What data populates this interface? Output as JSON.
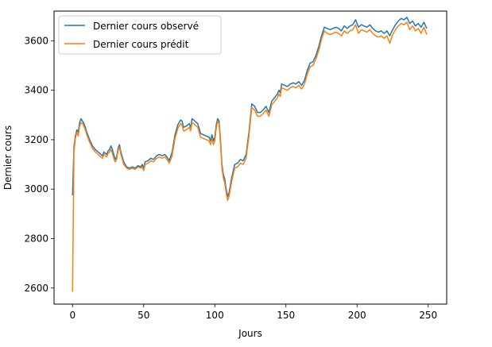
{
  "chart_data": {
    "type": "line",
    "title": "",
    "xlabel": "Jours",
    "ylabel": "Dernier cours",
    "xlim": [
      -13,
      263
    ],
    "ylim": [
      2535,
      3720
    ],
    "xticks": [
      0,
      50,
      100,
      150,
      200,
      250
    ],
    "yticks": [
      2600,
      2800,
      3000,
      3200,
      3400,
      3600
    ],
    "grid": false,
    "legend_position": "top-left",
    "series": [
      {
        "name": "Dernier cours observé",
        "color": "#1f77b4",
        "points": [
          [
            0,
            2975
          ],
          [
            1,
            3170
          ],
          [
            2,
            3215
          ],
          [
            3,
            3240
          ],
          [
            4,
            3230
          ],
          [
            5,
            3270
          ],
          [
            6,
            3285
          ],
          [
            7,
            3275
          ],
          [
            8,
            3265
          ],
          [
            9,
            3250
          ],
          [
            10,
            3230
          ],
          [
            12,
            3200
          ],
          [
            14,
            3175
          ],
          [
            16,
            3160
          ],
          [
            18,
            3150
          ],
          [
            20,
            3140
          ],
          [
            21,
            3135
          ],
          [
            22,
            3150
          ],
          [
            23,
            3145
          ],
          [
            24,
            3140
          ],
          [
            25,
            3155
          ],
          [
            26,
            3160
          ],
          [
            27,
            3175
          ],
          [
            28,
            3160
          ],
          [
            29,
            3140
          ],
          [
            30,
            3120
          ],
          [
            31,
            3130
          ],
          [
            32,
            3165
          ],
          [
            33,
            3180
          ],
          [
            34,
            3150
          ],
          [
            36,
            3110
          ],
          [
            38,
            3090
          ],
          [
            40,
            3085
          ],
          [
            42,
            3090
          ],
          [
            44,
            3085
          ],
          [
            46,
            3095
          ],
          [
            48,
            3090
          ],
          [
            49,
            3100
          ],
          [
            50,
            3085
          ],
          [
            51,
            3110
          ],
          [
            53,
            3115
          ],
          [
            55,
            3125
          ],
          [
            57,
            3120
          ],
          [
            59,
            3135
          ],
          [
            61,
            3140
          ],
          [
            63,
            3135
          ],
          [
            65,
            3140
          ],
          [
            67,
            3125
          ],
          [
            68,
            3115
          ],
          [
            70,
            3150
          ],
          [
            72,
            3220
          ],
          [
            74,
            3260
          ],
          [
            76,
            3280
          ],
          [
            77,
            3275
          ],
          [
            78,
            3250
          ],
          [
            80,
            3255
          ],
          [
            82,
            3265
          ],
          [
            83,
            3250
          ],
          [
            84,
            3285
          ],
          [
            86,
            3275
          ],
          [
            88,
            3265
          ],
          [
            90,
            3225
          ],
          [
            92,
            3220
          ],
          [
            94,
            3215
          ],
          [
            96,
            3210
          ],
          [
            97,
            3195
          ],
          [
            98,
            3220
          ],
          [
            99,
            3195
          ],
          [
            100,
            3210
          ],
          [
            101,
            3260
          ],
          [
            102,
            3285
          ],
          [
            103,
            3275
          ],
          [
            104,
            3200
          ],
          [
            105,
            3100
          ],
          [
            106,
            3060
          ],
          [
            107,
            3040
          ],
          [
            108,
            3000
          ],
          [
            109,
            2970
          ],
          [
            110,
            2985
          ],
          [
            112,
            3050
          ],
          [
            114,
            3100
          ],
          [
            116,
            3105
          ],
          [
            118,
            3120
          ],
          [
            120,
            3115
          ],
          [
            122,
            3140
          ],
          [
            124,
            3230
          ],
          [
            126,
            3345
          ],
          [
            128,
            3335
          ],
          [
            130,
            3310
          ],
          [
            132,
            3310
          ],
          [
            134,
            3320
          ],
          [
            136,
            3335
          ],
          [
            138,
            3310
          ],
          [
            140,
            3355
          ],
          [
            142,
            3370
          ],
          [
            144,
            3385
          ],
          [
            145,
            3400
          ],
          [
            146,
            3390
          ],
          [
            147,
            3425
          ],
          [
            149,
            3420
          ],
          [
            151,
            3415
          ],
          [
            153,
            3425
          ],
          [
            155,
            3430
          ],
          [
            157,
            3425
          ],
          [
            159,
            3435
          ],
          [
            161,
            3420
          ],
          [
            163,
            3440
          ],
          [
            165,
            3480
          ],
          [
            167,
            3510
          ],
          [
            169,
            3515
          ],
          [
            171,
            3540
          ],
          [
            173,
            3575
          ],
          [
            175,
            3620
          ],
          [
            177,
            3655
          ],
          [
            179,
            3650
          ],
          [
            181,
            3645
          ],
          [
            183,
            3650
          ],
          [
            185,
            3655
          ],
          [
            187,
            3650
          ],
          [
            189,
            3640
          ],
          [
            191,
            3660
          ],
          [
            193,
            3650
          ],
          [
            195,
            3660
          ],
          [
            197,
            3665
          ],
          [
            199,
            3685
          ],
          [
            201,
            3655
          ],
          [
            203,
            3665
          ],
          [
            205,
            3660
          ],
          [
            207,
            3655
          ],
          [
            209,
            3665
          ],
          [
            211,
            3650
          ],
          [
            213,
            3640
          ],
          [
            215,
            3635
          ],
          [
            217,
            3640
          ],
          [
            219,
            3630
          ],
          [
            221,
            3640
          ],
          [
            223,
            3620
          ],
          [
            225,
            3645
          ],
          [
            227,
            3665
          ],
          [
            229,
            3680
          ],
          [
            231,
            3690
          ],
          [
            233,
            3685
          ],
          [
            235,
            3695
          ],
          [
            237,
            3670
          ],
          [
            239,
            3680
          ],
          [
            241,
            3660
          ],
          [
            243,
            3670
          ],
          [
            245,
            3655
          ],
          [
            247,
            3675
          ],
          [
            249,
            3650
          ]
        ]
      },
      {
        "name": "Dernier cours prédit",
        "color": "#ff7f0e",
        "points": [
          [
            0,
            2585
          ],
          [
            1,
            3150
          ],
          [
            2,
            3205
          ],
          [
            3,
            3230
          ],
          [
            4,
            3215
          ],
          [
            5,
            3255
          ],
          [
            6,
            3270
          ],
          [
            7,
            3265
          ],
          [
            8,
            3255
          ],
          [
            9,
            3240
          ],
          [
            10,
            3220
          ],
          [
            12,
            3190
          ],
          [
            14,
            3165
          ],
          [
            16,
            3150
          ],
          [
            18,
            3140
          ],
          [
            20,
            3130
          ],
          [
            21,
            3125
          ],
          [
            22,
            3140
          ],
          [
            23,
            3135
          ],
          [
            24,
            3130
          ],
          [
            25,
            3145
          ],
          [
            26,
            3150
          ],
          [
            27,
            3160
          ],
          [
            28,
            3145
          ],
          [
            29,
            3125
          ],
          [
            30,
            3110
          ],
          [
            31,
            3120
          ],
          [
            32,
            3155
          ],
          [
            33,
            3170
          ],
          [
            34,
            3140
          ],
          [
            36,
            3100
          ],
          [
            38,
            3085
          ],
          [
            40,
            3080
          ],
          [
            42,
            3085
          ],
          [
            44,
            3080
          ],
          [
            46,
            3090
          ],
          [
            48,
            3085
          ],
          [
            49,
            3090
          ],
          [
            50,
            3075
          ],
          [
            51,
            3100
          ],
          [
            53,
            3105
          ],
          [
            55,
            3115
          ],
          [
            57,
            3110
          ],
          [
            59,
            3125
          ],
          [
            61,
            3130
          ],
          [
            63,
            3125
          ],
          [
            65,
            3130
          ],
          [
            67,
            3115
          ],
          [
            68,
            3105
          ],
          [
            70,
            3135
          ],
          [
            72,
            3205
          ],
          [
            74,
            3245
          ],
          [
            76,
            3265
          ],
          [
            77,
            3260
          ],
          [
            78,
            3235
          ],
          [
            80,
            3240
          ],
          [
            82,
            3250
          ],
          [
            83,
            3235
          ],
          [
            84,
            3270
          ],
          [
            86,
            3260
          ],
          [
            88,
            3250
          ],
          [
            90,
            3210
          ],
          [
            92,
            3205
          ],
          [
            94,
            3200
          ],
          [
            96,
            3195
          ],
          [
            97,
            3180
          ],
          [
            98,
            3205
          ],
          [
            99,
            3180
          ],
          [
            100,
            3195
          ],
          [
            101,
            3245
          ],
          [
            102,
            3275
          ],
          [
            103,
            3265
          ],
          [
            104,
            3185
          ],
          [
            105,
            3085
          ],
          [
            106,
            3045
          ],
          [
            107,
            3025
          ],
          [
            108,
            2985
          ],
          [
            109,
            2955
          ],
          [
            110,
            2970
          ],
          [
            112,
            3035
          ],
          [
            114,
            3085
          ],
          [
            116,
            3090
          ],
          [
            118,
            3105
          ],
          [
            120,
            3100
          ],
          [
            122,
            3125
          ],
          [
            124,
            3215
          ],
          [
            126,
            3330
          ],
          [
            128,
            3320
          ],
          [
            130,
            3295
          ],
          [
            132,
            3295
          ],
          [
            134,
            3305
          ],
          [
            136,
            3320
          ],
          [
            138,
            3295
          ],
          [
            140,
            3340
          ],
          [
            142,
            3355
          ],
          [
            144,
            3370
          ],
          [
            145,
            3385
          ],
          [
            146,
            3375
          ],
          [
            147,
            3410
          ],
          [
            149,
            3405
          ],
          [
            151,
            3400
          ],
          [
            153,
            3410
          ],
          [
            155,
            3415
          ],
          [
            157,
            3410
          ],
          [
            159,
            3420
          ],
          [
            161,
            3405
          ],
          [
            163,
            3425
          ],
          [
            165,
            3465
          ],
          [
            167,
            3495
          ],
          [
            169,
            3500
          ],
          [
            171,
            3525
          ],
          [
            173,
            3560
          ],
          [
            175,
            3605
          ],
          [
            177,
            3640
          ],
          [
            179,
            3630
          ],
          [
            181,
            3625
          ],
          [
            183,
            3630
          ],
          [
            185,
            3635
          ],
          [
            187,
            3630
          ],
          [
            189,
            3620
          ],
          [
            191,
            3640
          ],
          [
            193,
            3630
          ],
          [
            195,
            3640
          ],
          [
            197,
            3645
          ],
          [
            199,
            3665
          ],
          [
            201,
            3630
          ],
          [
            203,
            3645
          ],
          [
            205,
            3640
          ],
          [
            207,
            3635
          ],
          [
            209,
            3645
          ],
          [
            211,
            3630
          ],
          [
            213,
            3620
          ],
          [
            215,
            3615
          ],
          [
            217,
            3620
          ],
          [
            219,
            3610
          ],
          [
            221,
            3620
          ],
          [
            223,
            3590
          ],
          [
            225,
            3625
          ],
          [
            227,
            3645
          ],
          [
            229,
            3660
          ],
          [
            231,
            3670
          ],
          [
            233,
            3665
          ],
          [
            235,
            3675
          ],
          [
            237,
            3645
          ],
          [
            239,
            3660
          ],
          [
            241,
            3640
          ],
          [
            243,
            3650
          ],
          [
            245,
            3630
          ],
          [
            247,
            3655
          ],
          [
            249,
            3625
          ]
        ]
      }
    ]
  }
}
